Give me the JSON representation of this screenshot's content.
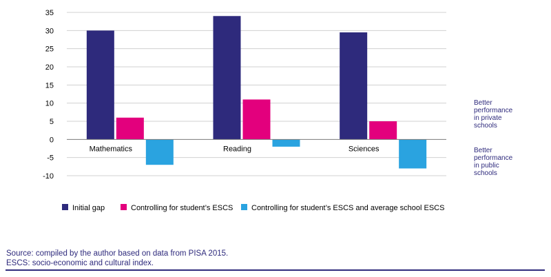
{
  "chart_data": {
    "type": "bar",
    "categories": [
      "Mathematics",
      "Reading",
      "Sciences"
    ],
    "series": [
      {
        "name": "Initial gap",
        "values": [
          30,
          34,
          29.5
        ],
        "color": "#2e2a7c"
      },
      {
        "name": "Controlling for student’s ESCS",
        "values": [
          6,
          11,
          5
        ],
        "color": "#e3007d"
      },
      {
        "name": "Controlling for student’s ESCS and average school ESCS",
        "values": [
          -7,
          -2,
          -8
        ],
        "color": "#2aa3e0"
      }
    ],
    "ylim": [
      -10,
      35
    ],
    "yticks": [
      -10,
      -5,
      0,
      5,
      10,
      15,
      20,
      25,
      30,
      35
    ],
    "grid": true,
    "legend_position": "bottom",
    "annotations": {
      "positive": [
        "Better",
        "performance",
        "in private",
        "schools"
      ],
      "negative": [
        "Better",
        "performance",
        "in public",
        "schools"
      ]
    }
  },
  "source": {
    "line1": "Source: compiled by the author based on data from PISA 2015.",
    "line2": "ESCS: socio-economic and cultural index."
  }
}
